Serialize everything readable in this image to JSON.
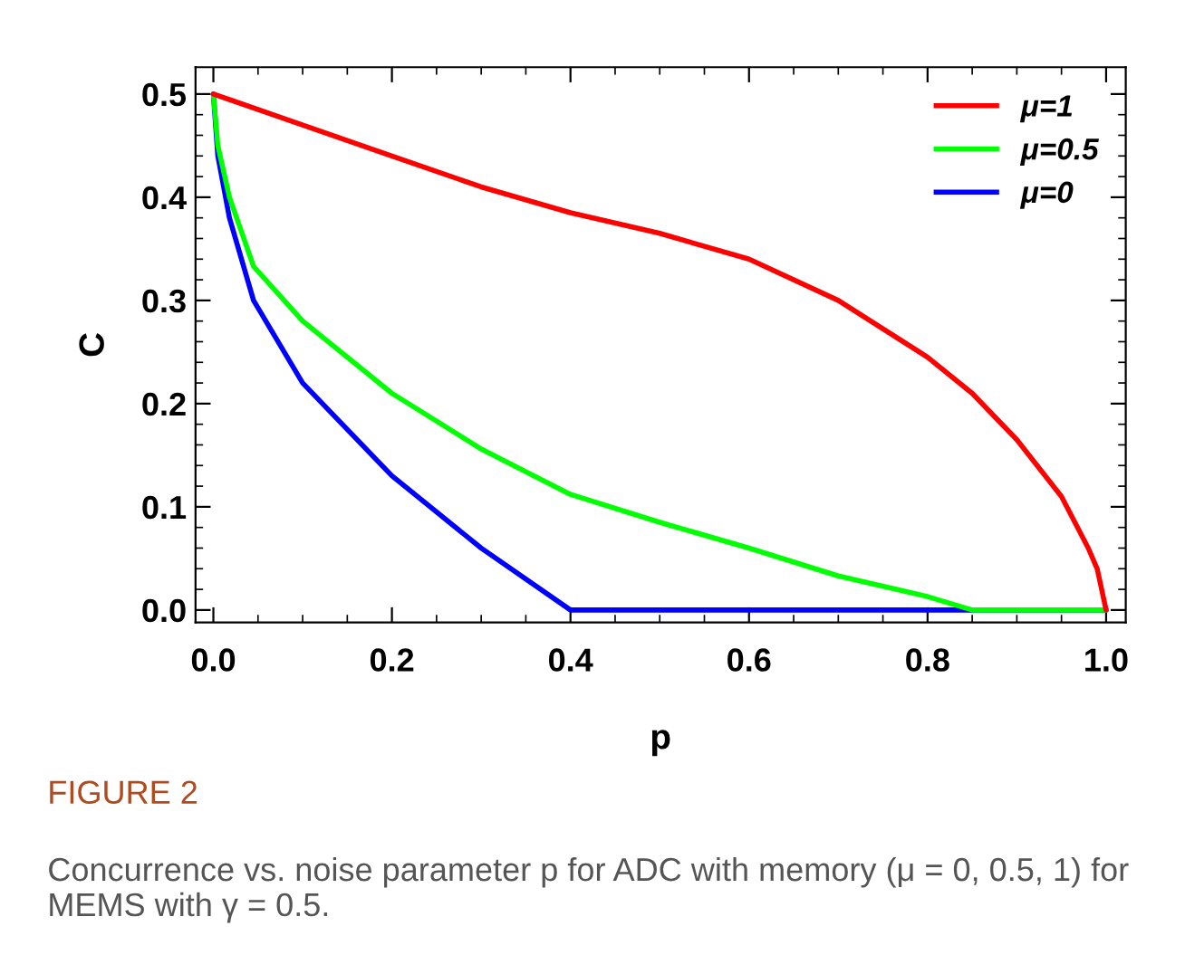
{
  "chart_data": {
    "type": "line",
    "xlabel": "p",
    "ylabel": "C",
    "series": [
      {
        "name": "μ=1",
        "color": "#ff0000",
        "x": [
          0,
          0.1,
          0.2,
          0.3,
          0.4,
          0.5,
          0.6,
          0.7,
          0.8,
          0.85,
          0.9,
          0.95,
          0.98,
          0.99,
          1.0
        ],
        "values": [
          0.5,
          0.47,
          0.44,
          0.41,
          0.385,
          0.365,
          0.34,
          0.3,
          0.245,
          0.21,
          0.165,
          0.11,
          0.06,
          0.04,
          0
        ]
      },
      {
        "name": "μ=0.5",
        "color": "#00ff00",
        "x": [
          0,
          0.005,
          0.018,
          0.045,
          0.1,
          0.2,
          0.3,
          0.4,
          0.5,
          0.6,
          0.7,
          0.8,
          0.85,
          1.0
        ],
        "values": [
          0.5,
          0.45,
          0.4,
          0.333,
          0.28,
          0.21,
          0.156,
          0.112,
          0.085,
          0.06,
          0.033,
          0.013,
          0,
          0
        ]
      },
      {
        "name": "μ=0",
        "color": "#0000ff",
        "x": [
          0,
          0.005,
          0.018,
          0.045,
          0.1,
          0.2,
          0.3,
          0.4,
          1.0
        ],
        "values": [
          0.5,
          0.44,
          0.38,
          0.3,
          0.22,
          0.13,
          0.06,
          0,
          0
        ]
      }
    ],
    "xlim": [
      -0.02,
      1.022
    ],
    "ylim": [
      -0.012,
      0.526
    ],
    "xticks": [
      {
        "value": 0.05,
        "label": null
      },
      {
        "value": 0.1,
        "label": null
      },
      {
        "value": 0.15,
        "label": null
      },
      {
        "value": 0.0,
        "label": "0.0"
      },
      {
        "value": 0.2,
        "label": "0.2"
      },
      {
        "value": 0.25,
        "label": null
      },
      {
        "value": 0.3,
        "label": null
      },
      {
        "value": 0.35,
        "label": null
      },
      {
        "value": 0.4,
        "label": "0.4"
      },
      {
        "value": 0.45,
        "label": null
      },
      {
        "value": 0.5,
        "label": null
      },
      {
        "value": 0.55,
        "label": null
      },
      {
        "value": 0.6,
        "label": "0.6"
      },
      {
        "value": 0.65,
        "label": null
      },
      {
        "value": 0.7,
        "label": null
      },
      {
        "value": 0.75,
        "label": null
      },
      {
        "value": 0.8,
        "label": "0.8"
      },
      {
        "value": 0.85,
        "label": null
      },
      {
        "value": 0.9,
        "label": null
      },
      {
        "value": 0.95,
        "label": null
      },
      {
        "value": 1.0,
        "label": "1.0"
      }
    ],
    "yticks": [
      {
        "value": 0.0,
        "label": "0.0"
      },
      {
        "value": 0.02,
        "label": null
      },
      {
        "value": 0.04,
        "label": null
      },
      {
        "value": 0.06,
        "label": null
      },
      {
        "value": 0.08,
        "label": null
      },
      {
        "value": 0.1,
        "label": "0.1"
      },
      {
        "value": 0.12,
        "label": null
      },
      {
        "value": 0.14,
        "label": null
      },
      {
        "value": 0.16,
        "label": null
      },
      {
        "value": 0.18,
        "label": null
      },
      {
        "value": 0.2,
        "label": "0.2"
      },
      {
        "value": 0.22,
        "label": null
      },
      {
        "value": 0.24,
        "label": null
      },
      {
        "value": 0.26,
        "label": null
      },
      {
        "value": 0.28,
        "label": null
      },
      {
        "value": 0.3,
        "label": "0.3"
      },
      {
        "value": 0.32,
        "label": null
      },
      {
        "value": 0.34,
        "label": null
      },
      {
        "value": 0.36,
        "label": null
      },
      {
        "value": 0.38,
        "label": null
      },
      {
        "value": 0.4,
        "label": "0.4"
      },
      {
        "value": 0.42,
        "label": null
      },
      {
        "value": 0.44,
        "label": null
      },
      {
        "value": 0.46,
        "label": null
      },
      {
        "value": 0.48,
        "label": null
      },
      {
        "value": 0.5,
        "label": "0.5"
      }
    ],
    "grid": false,
    "legend": "top right",
    "line_style": "solid",
    "marker": "none",
    "annotations": [
      "FIGURE 2",
      "Concurrence vs. noise parameter p for ADC with memory (μ = 0, 0.5, 1) for MEMS with γ = 0.5."
    ]
  }
}
